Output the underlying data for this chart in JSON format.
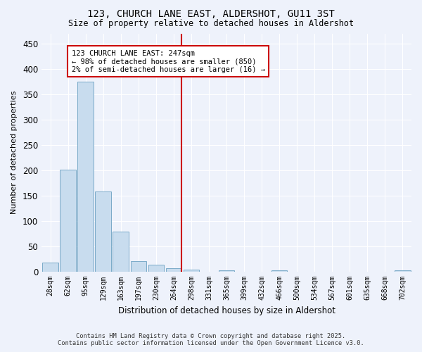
{
  "title": "123, CHURCH LANE EAST, ALDERSHOT, GU11 3ST",
  "subtitle": "Size of property relative to detached houses in Aldershot",
  "xlabel": "Distribution of detached houses by size in Aldershot",
  "ylabel": "Number of detached properties",
  "bar_color": "#c8dcee",
  "bar_edge_color": "#7aaac8",
  "background_color": "#eef2fb",
  "grid_color": "#ffffff",
  "categories": [
    "28sqm",
    "62sqm",
    "95sqm",
    "129sqm",
    "163sqm",
    "197sqm",
    "230sqm",
    "264sqm",
    "298sqm",
    "331sqm",
    "365sqm",
    "399sqm",
    "432sqm",
    "466sqm",
    "500sqm",
    "534sqm",
    "567sqm",
    "601sqm",
    "635sqm",
    "668sqm",
    "702sqm"
  ],
  "values": [
    18,
    202,
    375,
    159,
    79,
    21,
    14,
    7,
    4,
    0,
    3,
    0,
    0,
    3,
    0,
    0,
    0,
    0,
    0,
    0,
    3
  ],
  "ylim": [
    0,
    470
  ],
  "yticks": [
    0,
    50,
    100,
    150,
    200,
    250,
    300,
    350,
    400,
    450
  ],
  "property_line_x": 7.43,
  "annotation_text": "123 CHURCH LANE EAST: 247sqm\n← 98% of detached houses are smaller (850)\n2% of semi-detached houses are larger (16) →",
  "annotation_box_color": "#ffffff",
  "annotation_box_edge": "#cc0000",
  "vline_color": "#cc0000",
  "footer_line1": "Contains HM Land Registry data © Crown copyright and database right 2025.",
  "footer_line2": "Contains public sector information licensed under the Open Government Licence v3.0."
}
